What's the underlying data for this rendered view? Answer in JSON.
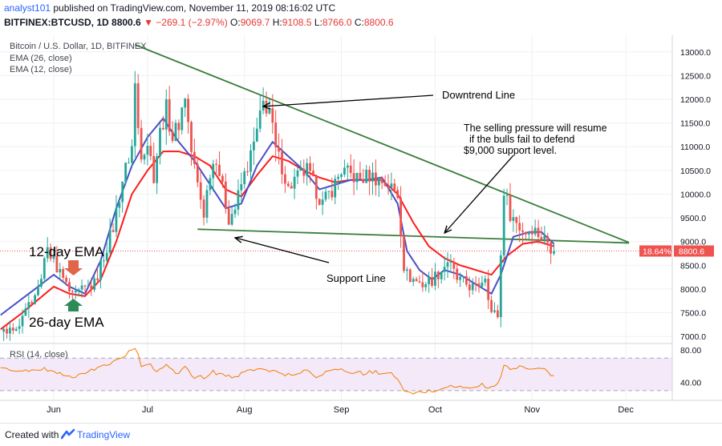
{
  "header": {
    "author": "analyst101",
    "published": " published on TradingView.com, November 11, 2019 08:16:02 UTC",
    "symbol": "BITFINEX:BTCUSD, 1D",
    "price": "8800.6",
    "change": "−269.1 (−2.97%)",
    "o_label": "O:",
    "o_value": "9069.7",
    "h_label": "H:",
    "h_value": "9108.5",
    "l_label": "L:",
    "l_value": "8766.0",
    "c_label": "C:",
    "c_value": "8800.6"
  },
  "footer": {
    "created_with": "Created with",
    "brand": "TradingView"
  },
  "chart_data": {
    "type": "candlestick",
    "title": "Bitcoin / U.S. Dollar, 1D, BITFINEX",
    "indicators": [
      "EMA (26, close)",
      "EMA (12, close)"
    ],
    "x_ticks": [
      "Jun",
      "Jul",
      "Aug",
      "Sep",
      "Oct",
      "Nov",
      "Dec"
    ],
    "x_tick_days": [
      0,
      30,
      61,
      92,
      122,
      153,
      183
    ],
    "y_ticks": [
      7000,
      7500,
      8000,
      8500,
      9000,
      9500,
      10000,
      10500,
      11000,
      11500,
      12000,
      12500,
      13000
    ],
    "y_tick_labels": [
      "7000.0",
      "7500.0",
      "8000.0",
      "8500.0",
      "9000.0",
      "9500.0",
      "10000.0",
      "10500.0",
      "11000.0",
      "11500.0",
      "12000.0",
      "12500.0",
      "13000.0"
    ],
    "ylim": [
      6850,
      13300
    ],
    "price_badge": "8800.6",
    "percent_badge": "18.64%",
    "last_price": 8800.6,
    "price_keypoints": [
      [
        -15,
        7100
      ],
      [
        -10,
        7400
      ],
      [
        -5,
        8000
      ],
      [
        -2,
        8800
      ],
      [
        0,
        8600
      ],
      [
        3,
        8200
      ],
      [
        6,
        7800
      ],
      [
        10,
        8000
      ],
      [
        13,
        8100
      ],
      [
        16,
        8700
      ],
      [
        19,
        9300
      ],
      [
        22,
        10300
      ],
      [
        25,
        11000
      ],
      [
        26,
        12300
      ],
      [
        27,
        11400
      ],
      [
        28,
        10900
      ],
      [
        30,
        11100
      ],
      [
        32,
        10400
      ],
      [
        34,
        11300
      ],
      [
        36,
        11800
      ],
      [
        38,
        11200
      ],
      [
        40,
        11500
      ],
      [
        42,
        12100
      ],
      [
        44,
        10900
      ],
      [
        46,
        10200
      ],
      [
        48,
        9600
      ],
      [
        50,
        10500
      ],
      [
        52,
        10800
      ],
      [
        54,
        10100
      ],
      [
        56,
        9500
      ],
      [
        58,
        9700
      ],
      [
        60,
        10200
      ],
      [
        63,
        10800
      ],
      [
        65,
        11300
      ],
      [
        67,
        11900
      ],
      [
        69,
        11800
      ],
      [
        71,
        10900
      ],
      [
        73,
        10600
      ],
      [
        75,
        10100
      ],
      [
        77,
        10300
      ],
      [
        79,
        10400
      ],
      [
        81,
        10500
      ],
      [
        83,
        10200
      ],
      [
        86,
        9800
      ],
      [
        89,
        10100
      ],
      [
        92,
        10500
      ],
      [
        95,
        10400
      ],
      [
        98,
        10300
      ],
      [
        101,
        10400
      ],
      [
        104,
        10300
      ],
      [
        107,
        10200
      ],
      [
        110,
        10000
      ],
      [
        112,
        8500
      ],
      [
        113,
        8300
      ],
      [
        115,
        8200
      ],
      [
        118,
        8100
      ],
      [
        121,
        8200
      ],
      [
        124,
        8400
      ],
      [
        126,
        8600
      ],
      [
        129,
        8200
      ],
      [
        132,
        8100
      ],
      [
        135,
        8000
      ],
      [
        138,
        8300
      ],
      [
        140,
        7500
      ],
      [
        142,
        7450
      ],
      [
        143,
        8700
      ],
      [
        144,
        10100
      ],
      [
        146,
        9600
      ],
      [
        149,
        9300
      ],
      [
        151,
        9200
      ],
      [
        153,
        9300
      ],
      [
        156,
        9100
      ],
      [
        158,
        9000
      ],
      [
        160,
        8800
      ]
    ],
    "ema_26_keypoints": [
      [
        -20,
        7000
      ],
      [
        -10,
        7500
      ],
      [
        0,
        8050
      ],
      [
        5,
        7900
      ],
      [
        10,
        7850
      ],
      [
        15,
        8200
      ],
      [
        20,
        9000
      ],
      [
        25,
        10000
      ],
      [
        30,
        10500
      ],
      [
        35,
        10900
      ],
      [
        40,
        10900
      ],
      [
        45,
        10800
      ],
      [
        50,
        10600
      ],
      [
        55,
        10100
      ],
      [
        60,
        9950
      ],
      [
        65,
        10400
      ],
      [
        70,
        10800
      ],
      [
        75,
        10700
      ],
      [
        80,
        10500
      ],
      [
        85,
        10350
      ],
      [
        90,
        10250
      ],
      [
        95,
        10300
      ],
      [
        100,
        10300
      ],
      [
        105,
        10300
      ],
      [
        110,
        10000
      ],
      [
        115,
        9400
      ],
      [
        120,
        8900
      ],
      [
        125,
        8650
      ],
      [
        130,
        8500
      ],
      [
        135,
        8400
      ],
      [
        140,
        8300
      ],
      [
        145,
        8700
      ],
      [
        150,
        8950
      ],
      [
        155,
        9000
      ],
      [
        160,
        8900
      ]
    ],
    "ema_12_keypoints": [
      [
        -20,
        7300
      ],
      [
        -10,
        7800
      ],
      [
        0,
        8300
      ],
      [
        5,
        8050
      ],
      [
        10,
        7900
      ],
      [
        15,
        8600
      ],
      [
        20,
        9700
      ],
      [
        25,
        10600
      ],
      [
        30,
        11200
      ],
      [
        35,
        11600
      ],
      [
        40,
        11100
      ],
      [
        45,
        10700
      ],
      [
        50,
        10200
      ],
      [
        55,
        9700
      ],
      [
        60,
        9800
      ],
      [
        65,
        10600
      ],
      [
        70,
        11100
      ],
      [
        75,
        10800
      ],
      [
        80,
        10500
      ],
      [
        85,
        10100
      ],
      [
        90,
        10200
      ],
      [
        95,
        10300
      ],
      [
        100,
        10300
      ],
      [
        105,
        10350
      ],
      [
        110,
        9800
      ],
      [
        113,
        8800
      ],
      [
        117,
        8400
      ],
      [
        121,
        8200
      ],
      [
        125,
        8400
      ],
      [
        130,
        8300
      ],
      [
        135,
        8100
      ],
      [
        140,
        7900
      ],
      [
        143,
        8300
      ],
      [
        147,
        9100
      ],
      [
        152,
        9200
      ],
      [
        156,
        9200
      ],
      [
        160,
        8950
      ]
    ],
    "downtrend_line": [
      [
        26,
        13150
      ],
      [
        184,
        8980
      ]
    ],
    "support_line": [
      [
        46,
        9260
      ],
      [
        184,
        8970
      ]
    ],
    "annotations": [
      {
        "name": "downtrend-label",
        "text": "Downtrend Line",
        "arrow_to": [
          67,
          11850
        ]
      },
      {
        "name": "selling-pressure-note",
        "text": "The selling pressure will resume|  if the bulls fail to defend|$9,000 support level.",
        "arrow_to": [
          125,
          9180
        ]
      },
      {
        "name": "support-label",
        "text": "Support Line",
        "arrow_to": [
          58,
          9080
        ]
      }
    ],
    "ema_labels": {
      "ema12": "12-day EMA",
      "ema26": "26-day EMA"
    },
    "rsi": {
      "label": "RSI (14, close)",
      "y_ticks": [
        40,
        80
      ],
      "y_tick_labels": [
        "40.00",
        "80.00"
      ],
      "ylim": [
        20,
        85
      ],
      "band": [
        30,
        70
      ],
      "keypoints": [
        [
          -20,
          55
        ],
        [
          -15,
          58
        ],
        [
          -10,
          53
        ],
        [
          -5,
          57
        ],
        [
          0,
          55
        ],
        [
          3,
          50
        ],
        [
          6,
          47
        ],
        [
          9,
          52
        ],
        [
          12,
          55
        ],
        [
          15,
          59
        ],
        [
          18,
          63
        ],
        [
          21,
          70
        ],
        [
          24,
          77
        ],
        [
          26,
          83
        ],
        [
          28,
          62
        ],
        [
          30,
          64
        ],
        [
          33,
          54
        ],
        [
          36,
          61
        ],
        [
          39,
          50
        ],
        [
          42,
          58
        ],
        [
          45,
          47
        ],
        [
          48,
          46
        ],
        [
          51,
          53
        ],
        [
          54,
          50
        ],
        [
          57,
          46
        ],
        [
          60,
          50
        ],
        [
          63,
          56
        ],
        [
          66,
          59
        ],
        [
          69,
          55
        ],
        [
          72,
          51
        ],
        [
          75,
          50
        ],
        [
          78,
          52
        ],
        [
          81,
          54
        ],
        [
          84,
          48
        ],
        [
          87,
          53
        ],
        [
          90,
          56
        ],
        [
          93,
          54
        ],
        [
          96,
          53
        ],
        [
          99,
          51
        ],
        [
          102,
          53
        ],
        [
          105,
          52
        ],
        [
          108,
          50
        ],
        [
          110,
          45
        ],
        [
          112,
          29
        ],
        [
          114,
          26
        ],
        [
          116,
          27
        ],
        [
          119,
          29
        ],
        [
          122,
          30
        ],
        [
          125,
          34
        ],
        [
          128,
          36
        ],
        [
          131,
          33
        ],
        [
          134,
          34
        ],
        [
          137,
          37
        ],
        [
          140,
          33
        ],
        [
          142,
          38
        ],
        [
          144,
          60
        ],
        [
          147,
          57
        ],
        [
          150,
          59
        ],
        [
          153,
          56
        ],
        [
          156,
          58
        ],
        [
          158,
          52
        ],
        [
          160,
          48
        ]
      ]
    }
  }
}
